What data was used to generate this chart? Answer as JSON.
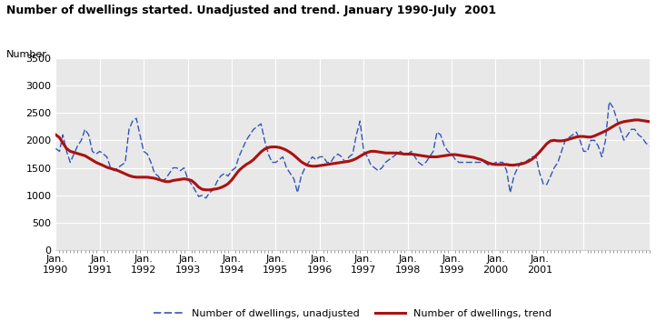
{
  "title": "Number of dwellings started. Unadjusted and trend. January 1990-July  2001",
  "ylabel": "Number",
  "ylim": [
    0,
    3500
  ],
  "yticks": [
    0,
    500,
    1000,
    1500,
    2000,
    2500,
    3000,
    3500
  ],
  "background_color": "#ffffff",
  "plot_bg_color": "#e8e8e8",
  "grid_color": "#ffffff",
  "unadjusted_color": "#3355bb",
  "trend_color": "#aa1111",
  "title_bar_color": "#55bbbb",
  "unadjusted_label": "Number of dwellings, unadjusted",
  "trend_label": "Number of dwellings, trend",
  "unadjusted": [
    1850,
    1800,
    2100,
    1800,
    1600,
    1750,
    1900,
    2000,
    2200,
    2100,
    1800,
    1750,
    1800,
    1750,
    1700,
    1500,
    1450,
    1500,
    1550,
    1600,
    2200,
    2350,
    2400,
    2100,
    1800,
    1750,
    1600,
    1400,
    1350,
    1250,
    1300,
    1400,
    1500,
    1500,
    1450,
    1500,
    1300,
    1200,
    1100,
    980,
    1000,
    950,
    1050,
    1100,
    1250,
    1350,
    1400,
    1350,
    1450,
    1500,
    1700,
    1850,
    2000,
    2100,
    2200,
    2250,
    2300,
    2000,
    1750,
    1600,
    1600,
    1650,
    1700,
    1500,
    1400,
    1300,
    1050,
    1350,
    1500,
    1600,
    1700,
    1650,
    1700,
    1700,
    1600,
    1600,
    1700,
    1750,
    1700,
    1600,
    1700,
    1750,
    2100,
    2350,
    1800,
    1700,
    1550,
    1500,
    1450,
    1500,
    1600,
    1650,
    1700,
    1750,
    1800,
    1750,
    1750,
    1800,
    1700,
    1600,
    1550,
    1600,
    1700,
    1800,
    2150,
    2100,
    1900,
    1800,
    1750,
    1650,
    1600,
    1600,
    1600,
    1600,
    1600,
    1600,
    1600,
    1600,
    1550,
    1550,
    1600,
    1600,
    1600,
    1450,
    1050,
    1350,
    1500,
    1600,
    1600,
    1650,
    1700,
    1700,
    1400,
    1200,
    1200,
    1350,
    1500,
    1600,
    1800,
    2000,
    2050,
    2100,
    2150,
    2000,
    1800,
    1800,
    2000,
    2000,
    1900,
    1700,
    2000,
    2700,
    2600,
    2400,
    2200,
    2000,
    2100,
    2200,
    2200,
    2100,
    2050,
    1950,
    1900
  ],
  "trend": [
    2100,
    2050,
    1950,
    1850,
    1800,
    1780,
    1760,
    1740,
    1720,
    1680,
    1640,
    1600,
    1570,
    1540,
    1510,
    1490,
    1470,
    1450,
    1420,
    1390,
    1360,
    1340,
    1330,
    1330,
    1330,
    1330,
    1320,
    1310,
    1290,
    1270,
    1250,
    1250,
    1270,
    1280,
    1290,
    1300,
    1290,
    1270,
    1220,
    1150,
    1110,
    1100,
    1100,
    1110,
    1120,
    1140,
    1170,
    1210,
    1280,
    1370,
    1450,
    1510,
    1560,
    1600,
    1650,
    1720,
    1790,
    1840,
    1870,
    1880,
    1880,
    1870,
    1850,
    1820,
    1780,
    1730,
    1670,
    1610,
    1570,
    1540,
    1530,
    1530,
    1540,
    1550,
    1560,
    1570,
    1580,
    1590,
    1600,
    1610,
    1620,
    1640,
    1670,
    1710,
    1750,
    1780,
    1800,
    1800,
    1790,
    1780,
    1770,
    1770,
    1770,
    1770,
    1760,
    1750,
    1750,
    1750,
    1740,
    1730,
    1720,
    1710,
    1700,
    1700,
    1700,
    1710,
    1720,
    1730,
    1740,
    1740,
    1730,
    1720,
    1710,
    1700,
    1690,
    1670,
    1650,
    1620,
    1590,
    1570,
    1560,
    1560,
    1560,
    1560,
    1550,
    1550,
    1560,
    1570,
    1590,
    1620,
    1660,
    1720,
    1790,
    1870,
    1940,
    1990,
    2000,
    1990,
    1990,
    2000,
    2020,
    2040,
    2060,
    2070,
    2070,
    2060,
    2060,
    2080,
    2110,
    2140,
    2170,
    2210,
    2250,
    2290,
    2320,
    2340,
    2350,
    2360,
    2370,
    2370,
    2360,
    2350,
    2340
  ]
}
